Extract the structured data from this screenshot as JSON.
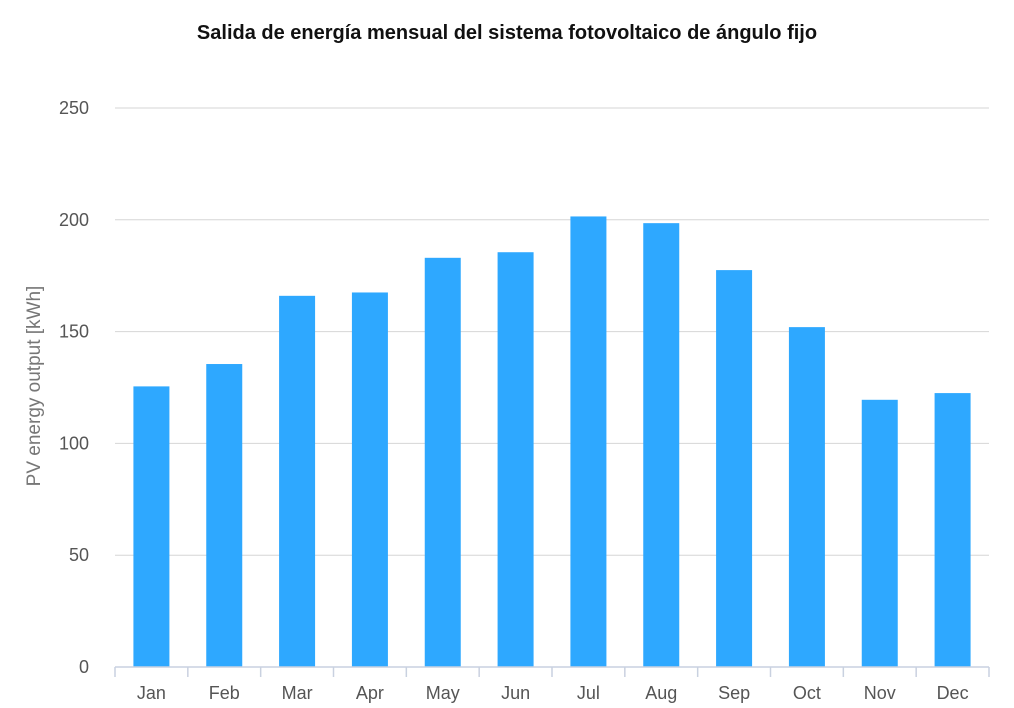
{
  "chart_data": {
    "type": "bar",
    "title": "Salida de energía mensual del sistema fotovoltaico de ángulo fijo",
    "xlabel": "",
    "ylabel": "PV energy output [kWh]",
    "categories": [
      "Jan",
      "Feb",
      "Mar",
      "Apr",
      "May",
      "Jun",
      "Jul",
      "Aug",
      "Sep",
      "Oct",
      "Nov",
      "Dec"
    ],
    "values": [
      125.5,
      135.5,
      166,
      167.5,
      183,
      185.5,
      201.5,
      198.5,
      177.5,
      152,
      119.5,
      122.5
    ],
    "ylim": [
      0,
      250
    ],
    "yticks": [
      0,
      50,
      100,
      150,
      200,
      250
    ],
    "grid": true,
    "legend": "none",
    "colors": {
      "bar": "#2ea8ff",
      "grid": "#d6d6d6",
      "axis": "#c9d1e0"
    }
  }
}
